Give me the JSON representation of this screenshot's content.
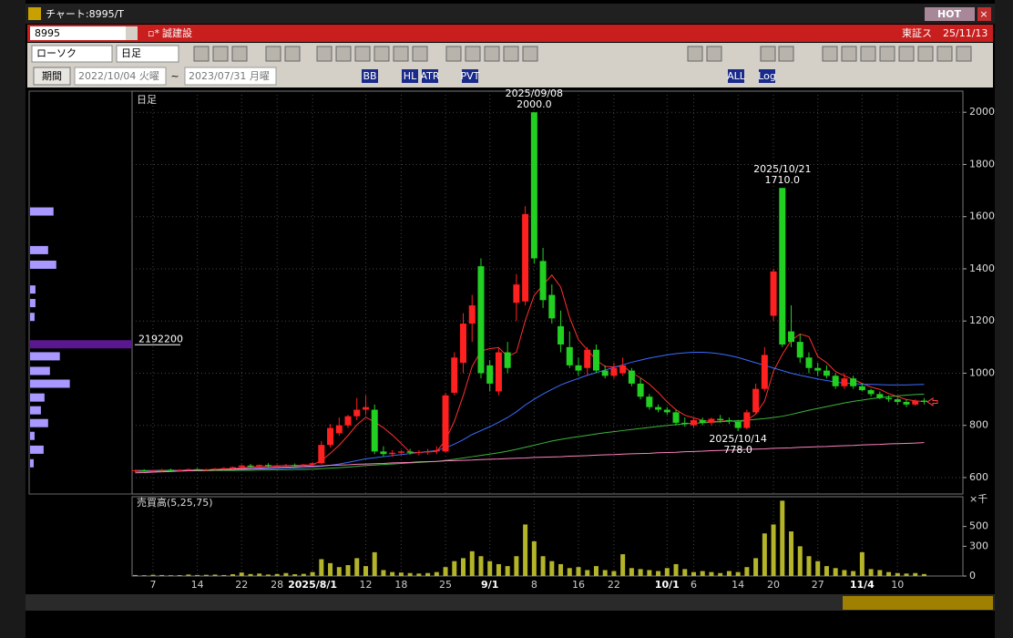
{
  "window": {
    "title": "チャート:8995/T",
    "hot": "HOT"
  },
  "header": {
    "code": "8995",
    "name": "誠建設",
    "market": "東証ス",
    "date": "25/11/13"
  },
  "toolbar": {
    "chart_style": "ローソク",
    "period": "日足",
    "buttons": [
      "BB",
      "HL",
      "ATR",
      "PVT",
      "ALL",
      "Log"
    ]
  },
  "range": {
    "button": "期間",
    "from": "2022/10/04 火曜",
    "separator": "~",
    "to": "2023/07/31 月曜"
  },
  "chart_data": [
    {
      "type": "candlestick",
      "panel_label": "日足",
      "categories": [
        null,
        null,
        "7",
        null,
        null,
        null,
        null,
        "14",
        null,
        null,
        null,
        null,
        "22",
        null,
        null,
        null,
        "28",
        null,
        null,
        null,
        "2025/8/1",
        null,
        null,
        null,
        null,
        null,
        "12",
        null,
        null,
        null,
        "18",
        null,
        null,
        null,
        null,
        "25",
        null,
        null,
        null,
        null,
        "9/1",
        null,
        null,
        null,
        null,
        "8",
        null,
        null,
        null,
        null,
        "16",
        null,
        null,
        null,
        "22",
        null,
        null,
        null,
        null,
        null,
        "10/1",
        null,
        null,
        "6",
        null,
        null,
        null,
        null,
        "14",
        null,
        null,
        null,
        "20",
        null,
        null,
        null,
        null,
        "27",
        null,
        null,
        null,
        null,
        "11/4",
        null,
        null,
        null,
        "10",
        null,
        null,
        null
      ],
      "series": [
        {
          "up_color": "#ff2020",
          "down_color": "#22d022",
          "open": [
            625,
            628,
            626,
            627,
            630,
            628,
            629,
            632,
            630,
            631,
            634,
            636,
            640,
            646,
            642,
            648,
            644,
            646,
            648,
            645,
            650,
            655,
            725,
            770,
            800,
            835,
            860,
            860,
            700,
            690,
            695,
            700,
            695,
            698,
            700,
            700,
            925,
            1040,
            1190,
            1410,
            1030,
            930,
            1080,
            1270,
            1275,
            2000,
            1430,
            1300,
            1180,
            1100,
            1030,
            1020,
            1090,
            1010,
            990,
            1000,
            1010,
            960,
            910,
            870,
            860,
            850,
            810,
            800,
            820,
            810,
            825,
            820,
            815,
            790,
            850,
            940,
            1220,
            1710,
            1160,
            1120,
            1060,
            1020,
            1010,
            990,
            950,
            980,
            950,
            935,
            920,
            905,
            900,
            890,
            880,
            895
          ],
          "high": [
            630,
            632,
            630,
            633,
            634,
            632,
            635,
            636,
            634,
            637,
            640,
            642,
            650,
            652,
            650,
            655,
            650,
            652,
            654,
            652,
            660,
            740,
            805,
            830,
            840,
            905,
            915,
            880,
            720,
            705,
            705,
            710,
            705,
            710,
            720,
            925,
            1080,
            1230,
            1300,
            1440,
            1050,
            1100,
            1120,
            1380,
            1640,
            2000,
            1480,
            1340,
            1240,
            1160,
            1060,
            1100,
            1110,
            1030,
            1040,
            1060,
            1020,
            980,
            920,
            880,
            870,
            860,
            830,
            830,
            830,
            830,
            840,
            830,
            820,
            860,
            960,
            1100,
            1400,
            1710,
            1260,
            1150,
            1080,
            1040,
            1030,
            1000,
            1000,
            990,
            960,
            940,
            930,
            915,
            905,
            900,
            900,
            905
          ],
          "low": [
            620,
            624,
            622,
            623,
            625,
            624,
            626,
            627,
            626,
            628,
            630,
            632,
            636,
            638,
            638,
            640,
            638,
            640,
            642,
            640,
            645,
            650,
            715,
            760,
            790,
            820,
            840,
            690,
            680,
            680,
            685,
            688,
            685,
            688,
            690,
            695,
            915,
            1000,
            1120,
            980,
            930,
            915,
            1000,
            1200,
            1260,
            1420,
            1250,
            1190,
            1080,
            1020,
            990,
            990,
            1000,
            980,
            980,
            990,
            950,
            900,
            860,
            850,
            840,
            800,
            795,
            790,
            800,
            800,
            810,
            805,
            778,
            785,
            845,
            930,
            1200,
            1100,
            1100,
            1040,
            1000,
            990,
            980,
            940,
            940,
            940,
            930,
            910,
            900,
            890,
            880,
            870,
            875,
            880
          ],
          "close": [
            628,
            626,
            627,
            630,
            628,
            629,
            632,
            630,
            631,
            634,
            636,
            640,
            646,
            642,
            648,
            644,
            646,
            648,
            645,
            650,
            655,
            725,
            790,
            800,
            835,
            860,
            870,
            700,
            690,
            695,
            700,
            695,
            698,
            700,
            705,
            915,
            1060,
            1190,
            1260,
            1000,
            960,
            1080,
            1020,
            1340,
            1610,
            1440,
            1280,
            1210,
            1110,
            1030,
            1010,
            1090,
            1010,
            990,
            1020,
            1030,
            960,
            910,
            870,
            860,
            850,
            810,
            805,
            820,
            810,
            825,
            820,
            815,
            790,
            850,
            940,
            1070,
            1390,
            1110,
            1120,
            1060,
            1020,
            1010,
            990,
            950,
            980,
            950,
            935,
            920,
            905,
            900,
            890,
            880,
            895,
            890
          ]
        }
      ],
      "overlays": [
        {
          "color": "#ff3030",
          "values": [
            628,
            627,
            627,
            628,
            628,
            628,
            629,
            630,
            630,
            631,
            633,
            634,
            637,
            640,
            642,
            644,
            645,
            646,
            646,
            647,
            649,
            665,
            693,
            724,
            761,
            802,
            831,
            813,
            791,
            763,
            731,
            696,
            696,
            698,
            700,
            743,
            816,
            914,
            1026,
            1085,
            1094,
            1098,
            1064,
            1080,
            1202,
            1298,
            1338,
            1376,
            1330,
            1214,
            1128,
            1090,
            1050,
            1026,
            1024,
            1028,
            1002,
            982,
            958,
            926,
            890,
            860,
            839,
            829,
            819,
            814,
            816,
            818,
            812,
            820,
            843,
            893,
            1008,
            1072,
            1126,
            1150,
            1140,
            1064,
            1040,
            1006,
            990,
            976,
            961,
            947,
            938,
            922,
            910,
            899,
            894,
            891
          ]
        },
        {
          "color": "#3a6cff",
          "values": [
            626,
            626,
            627,
            627,
            627,
            628,
            628,
            628,
            629,
            629,
            630,
            630,
            631,
            632,
            633,
            634,
            635,
            636,
            637,
            638,
            640,
            643,
            647,
            652,
            658,
            665,
            672,
            676,
            680,
            684,
            688,
            692,
            696,
            700,
            704,
            714,
            728,
            745,
            765,
            780,
            795,
            812,
            830,
            852,
            878,
            900,
            920,
            938,
            955,
            968,
            980,
            992,
            1002,
            1012,
            1022,
            1032,
            1042,
            1050,
            1058,
            1064,
            1070,
            1075,
            1078,
            1080,
            1080,
            1078,
            1074,
            1068,
            1060,
            1050,
            1040,
            1030,
            1020,
            1010,
            1000,
            992,
            985,
            978,
            972,
            966,
            962,
            960,
            958,
            957,
            956,
            955,
            955,
            955,
            956,
            957
          ]
        },
        {
          "color": "#3cb43c",
          "values": [
            624,
            624,
            624,
            625,
            625,
            625,
            626,
            626,
            626,
            627,
            627,
            627,
            628,
            628,
            629,
            629,
            630,
            630,
            631,
            631,
            632,
            634,
            636,
            638,
            640,
            643,
            646,
            648,
            650,
            652,
            654,
            656,
            658,
            660,
            662,
            666,
            670,
            675,
            680,
            685,
            690,
            695,
            701,
            708,
            716,
            724,
            732,
            740,
            746,
            752,
            757,
            762,
            767,
            772,
            776,
            780,
            784,
            788,
            792,
            796,
            800,
            803,
            806,
            808,
            810,
            812,
            814,
            816,
            818,
            820,
            823,
            826,
            830,
            835,
            842,
            850,
            858,
            865,
            872,
            879,
            886,
            892,
            897,
            902,
            906,
            910,
            913,
            916,
            918,
            920
          ]
        },
        {
          "color": "#ff80c0",
          "values": [
            618,
            619,
            621,
            622,
            623,
            625,
            626,
            627,
            628,
            630,
            631,
            632,
            634,
            635,
            636,
            638,
            639,
            640,
            641,
            643,
            644,
            645,
            647,
            648,
            649,
            651,
            652,
            653,
            654,
            656,
            657,
            658,
            660,
            661,
            662,
            664,
            665,
            666,
            667,
            669,
            670,
            671,
            673,
            674,
            675,
            677,
            678,
            679,
            680,
            682,
            683,
            684,
            686,
            687,
            688,
            690,
            691,
            692,
            693,
            695,
            696,
            697,
            699,
            700,
            701,
            703,
            704,
            705,
            706,
            708,
            709,
            710,
            712,
            713,
            714,
            716,
            717,
            718,
            719,
            721,
            722,
            723,
            725,
            726,
            727,
            729,
            730,
            731,
            732,
            734
          ]
        }
      ],
      "ylim": [
        537,
        2081
      ],
      "yticks": [
        600,
        800,
        1000,
        1200,
        1400,
        1600,
        1800,
        2000
      ],
      "grid": true,
      "annotations": [
        {
          "date": "2025/09/08",
          "value": 2000,
          "label": "2000.0"
        },
        {
          "date": "2025/10/21",
          "value": 1710,
          "label": "1710.0"
        },
        {
          "date": "2025/10/14",
          "value": 778,
          "label": "778.0"
        }
      ],
      "price_volume": {
        "color": "#a898ff",
        "max_color": "#5a1890",
        "prices": [
          1618,
          1470,
          1414,
          1319,
          1267,
          1214,
          1109,
          1063,
          1007,
          958,
          905,
          856,
          807,
          758,
          705,
          653
        ],
        "values": [
          504000,
          388000,
          563000,
          116000,
          116000,
          97000,
          2192200,
          640000,
          427000,
          854000,
          310000,
          233000,
          388000,
          97000,
          291000,
          78000
        ]
      }
    },
    {
      "type": "bar",
      "title": "売買高(5,25,75)",
      "unit": "×千",
      "color": "#b4b42a",
      "values": [
        10,
        8,
        12,
        10,
        8,
        9,
        15,
        10,
        12,
        14,
        10,
        18,
        35,
        20,
        25,
        15,
        20,
        30,
        18,
        22,
        40,
        170,
        130,
        90,
        110,
        180,
        100,
        240,
        60,
        40,
        35,
        30,
        25,
        30,
        40,
        90,
        150,
        180,
        250,
        200,
        150,
        120,
        100,
        200,
        520,
        350,
        200,
        150,
        120,
        80,
        90,
        60,
        100,
        60,
        50,
        220,
        80,
        70,
        60,
        50,
        80,
        120,
        70,
        40,
        50,
        40,
        30,
        50,
        40,
        90,
        180,
        430,
        520,
        760,
        450,
        300,
        200,
        150,
        100,
        80,
        60,
        50,
        240,
        70,
        60,
        40,
        30,
        25,
        30,
        20
      ],
      "ylim": [
        0,
        800
      ],
      "yticks": [
        0,
        300,
        500
      ]
    }
  ]
}
